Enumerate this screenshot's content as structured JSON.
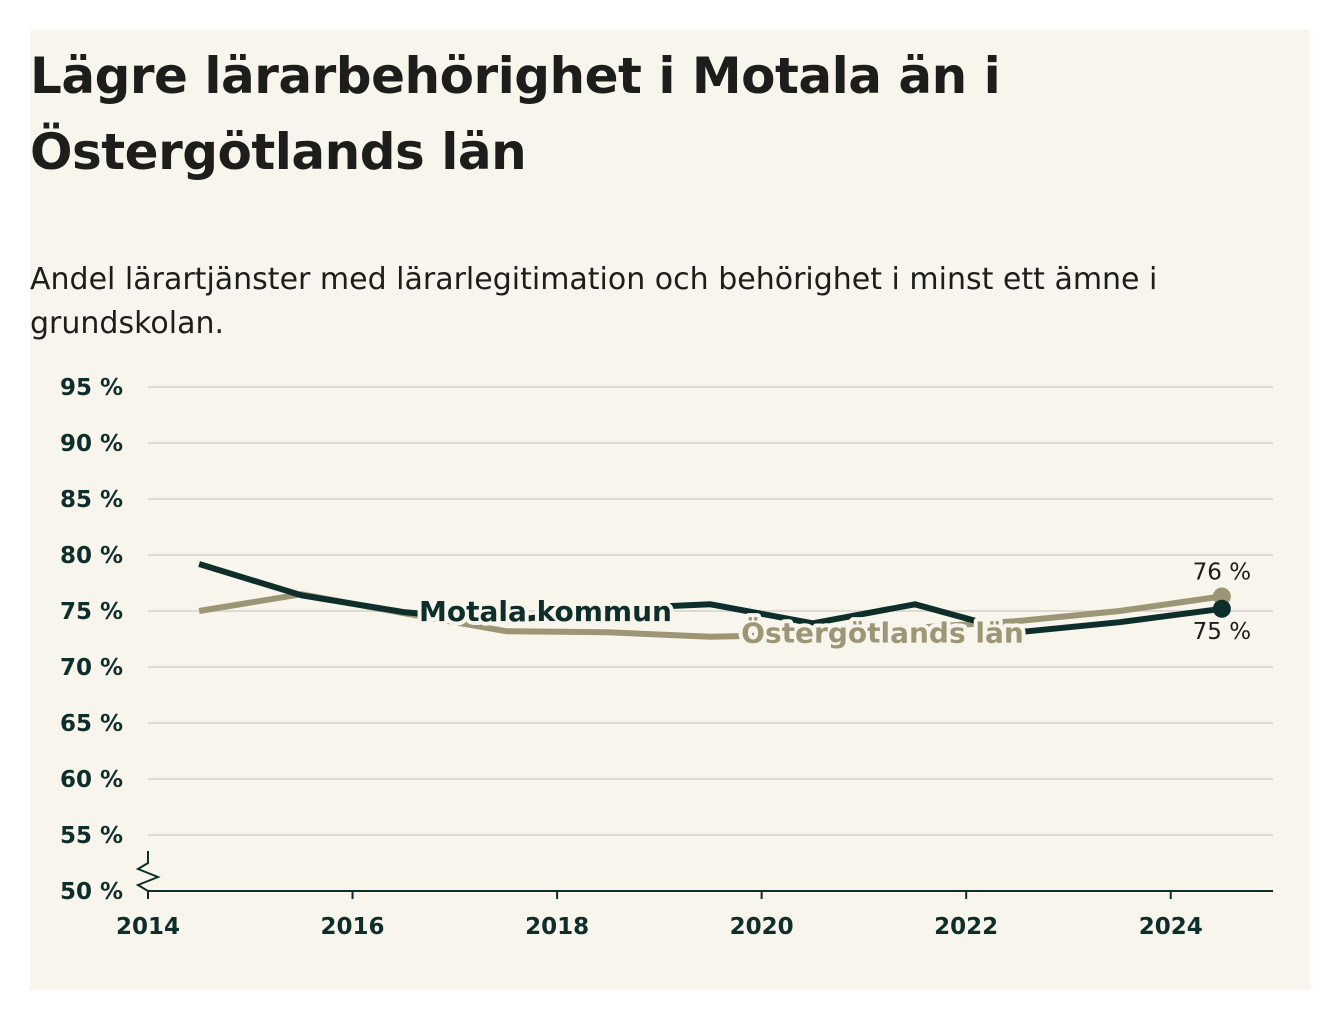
{
  "header": {
    "title": "Lägre lärarbehörighet i Motala än i Östergötlands län",
    "subtitle": "Andel lärartjänster med lärarlegitimation och behörighet i minst ett ämne i grundskolan."
  },
  "colors": {
    "background": "#f7f5ec",
    "motala": "#0d2e2a",
    "lan": "#9c9676",
    "grid": "#dcdad2",
    "axis": "#0d2e2a"
  },
  "chart_data": {
    "type": "line",
    "title": "Lägre lärarbehörighet i Motala än i Östergötlands län",
    "subtitle": "Andel lärartjänster med lärarlegitimation och behörighet i minst ett ämne i grundskolan.",
    "xlabel": "",
    "ylabel": "",
    "xlim": [
      2014,
      2025
    ],
    "ylim": [
      50,
      95
    ],
    "grid": true,
    "y_ticks": [
      50,
      55,
      60,
      65,
      70,
      75,
      80,
      85,
      90,
      95
    ],
    "y_tick_labels": [
      "50 %",
      "55 %",
      "60 %",
      "65 %",
      "70 %",
      "75 %",
      "80 %",
      "85 %",
      "90 %",
      "95 %"
    ],
    "x_ticks": [
      2014,
      2016,
      2018,
      2020,
      2022,
      2024
    ],
    "x_tick_labels": [
      "2014",
      "2016",
      "2018",
      "2020",
      "2022",
      "2024"
    ],
    "axis_break": true,
    "x": [
      2014.5,
      2015.5,
      2016.5,
      2017.5,
      2018.5,
      2019.5,
      2020.5,
      2021.5,
      2022.5,
      2023.5,
      2024.5
    ],
    "series": [
      {
        "name": "Motala kommun",
        "color": "#0d2e2a",
        "values": [
          79.2,
          76.4,
          74.9,
          74.1,
          75.2,
          75.6,
          73.9,
          75.6,
          73.1,
          74.0,
          75.2
        ],
        "end_label": "75 %"
      },
      {
        "name": "Östergötlands län",
        "color": "#9c9676",
        "values": [
          75.0,
          76.5,
          74.8,
          73.2,
          73.1,
          72.7,
          72.9,
          73.5,
          74.1,
          75.0,
          76.3
        ],
        "end_label": "76 %"
      }
    ]
  }
}
